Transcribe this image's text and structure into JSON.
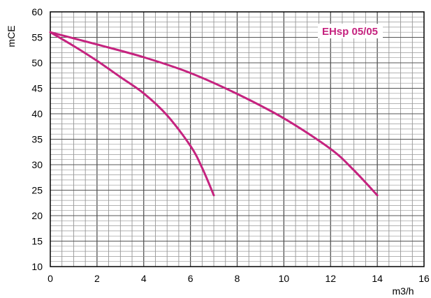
{
  "chart_data": {
    "type": "line",
    "xlabel": "m3/h",
    "ylabel": "mCE",
    "xlim": [
      0,
      16
    ],
    "ylim": [
      10,
      60
    ],
    "x_ticks": [
      "0",
      "2",
      "4",
      "6",
      "8",
      "10",
      "12",
      "14",
      "16"
    ],
    "y_ticks": [
      "10",
      "15",
      "20",
      "25",
      "30",
      "35",
      "40",
      "45",
      "50",
      "55",
      "60"
    ],
    "grid": true,
    "annotation": "EHsp 05/05",
    "line_color": "#c5237f",
    "series": [
      {
        "x": [
          0,
          1,
          2,
          3,
          4,
          5,
          6,
          6.5,
          7
        ],
        "y": [
          56,
          53.3,
          50.4,
          47.2,
          44,
          39.7,
          33.7,
          29.4,
          24
        ]
      },
      {
        "x": [
          0,
          2,
          4,
          6,
          8,
          10,
          12,
          13,
          14
        ],
        "y": [
          56,
          53.6,
          51.1,
          48,
          43.9,
          39.1,
          33.1,
          28.9,
          24
        ]
      }
    ]
  }
}
